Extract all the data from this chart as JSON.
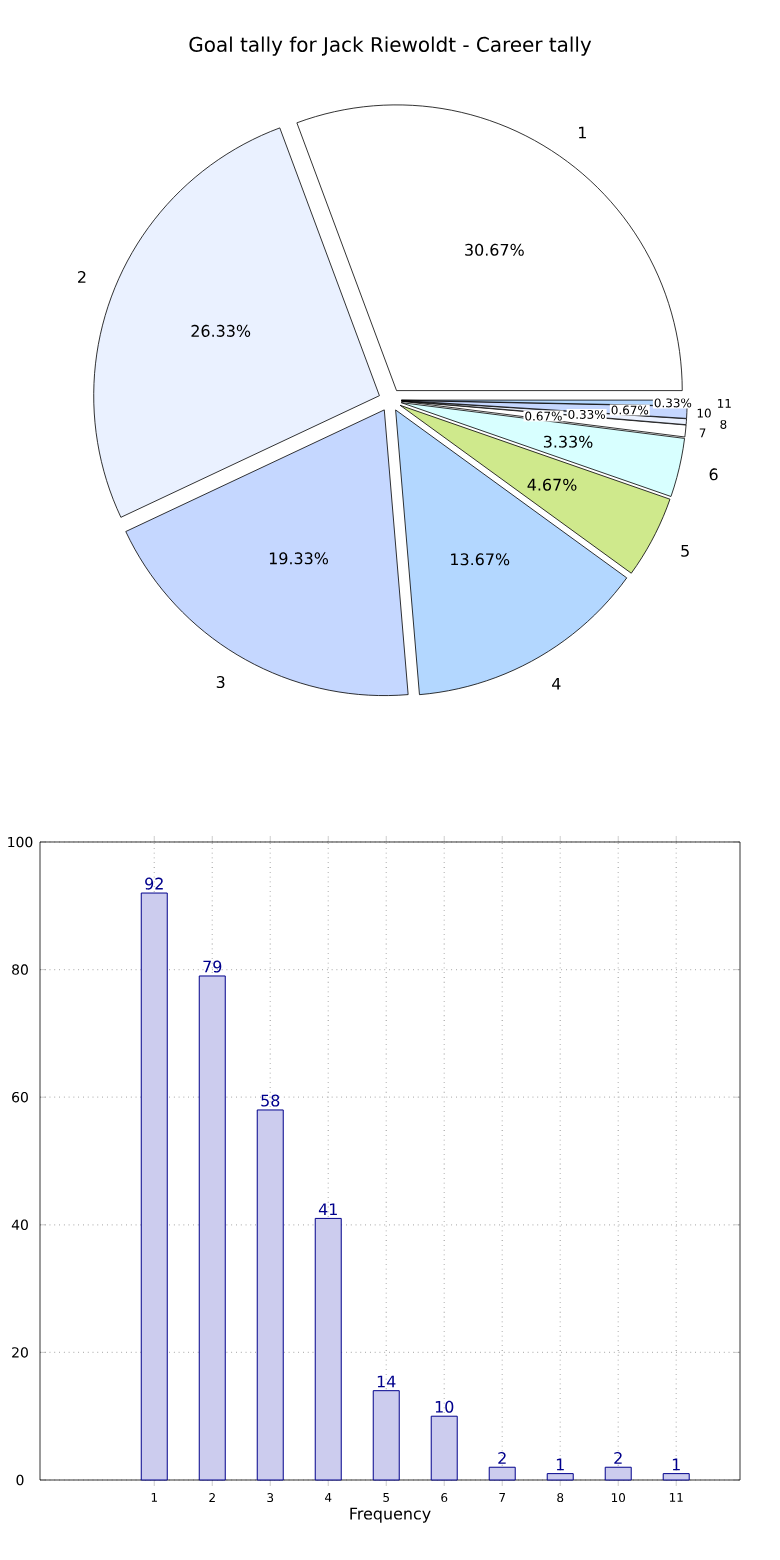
{
  "chart_data": [
    {
      "type": "pie",
      "title": "Goal tally for Jack Riewoldt - Career tally",
      "categories": [
        "1",
        "2",
        "3",
        "4",
        "5",
        "6",
        "7",
        "8",
        "10",
        "11"
      ],
      "values": [
        30.67,
        26.33,
        19.33,
        13.67,
        4.67,
        3.33,
        0.67,
        0.33,
        0.67,
        0.33
      ],
      "value_labels": [
        "30.67%",
        "26.33%",
        "19.33%",
        "13.67%",
        "4.67%",
        "3.33%",
        "0.67%",
        "0.33%",
        "0.67%",
        "0.33%"
      ],
      "colors": [
        "#ffffff",
        "#eaf1ff",
        "#c5d7ff",
        "#b3d7ff",
        "#cfe98c",
        "#d8ffff",
        "#ffffff",
        "#eaf1ff",
        "#c5d7ff",
        "#b3d7ff"
      ]
    },
    {
      "type": "bar",
      "xlabel": "Frequency",
      "categories": [
        "1",
        "2",
        "3",
        "4",
        "5",
        "6",
        "7",
        "8",
        "10",
        "11"
      ],
      "values": [
        92,
        79,
        58,
        41,
        14,
        10,
        2,
        1,
        2,
        1
      ],
      "color": "#ccccee",
      "ylim": [
        0,
        100
      ],
      "yticks": [
        {
          "value": 0,
          "label": "0"
        },
        {
          "value": 20,
          "label": "20"
        },
        {
          "value": 40,
          "label": "40"
        },
        {
          "value": 60,
          "label": "60"
        },
        {
          "value": 80,
          "label": "80"
        },
        {
          "value": 100,
          "label": "100"
        }
      ],
      "grid": true,
      "data_labels": true
    }
  ]
}
